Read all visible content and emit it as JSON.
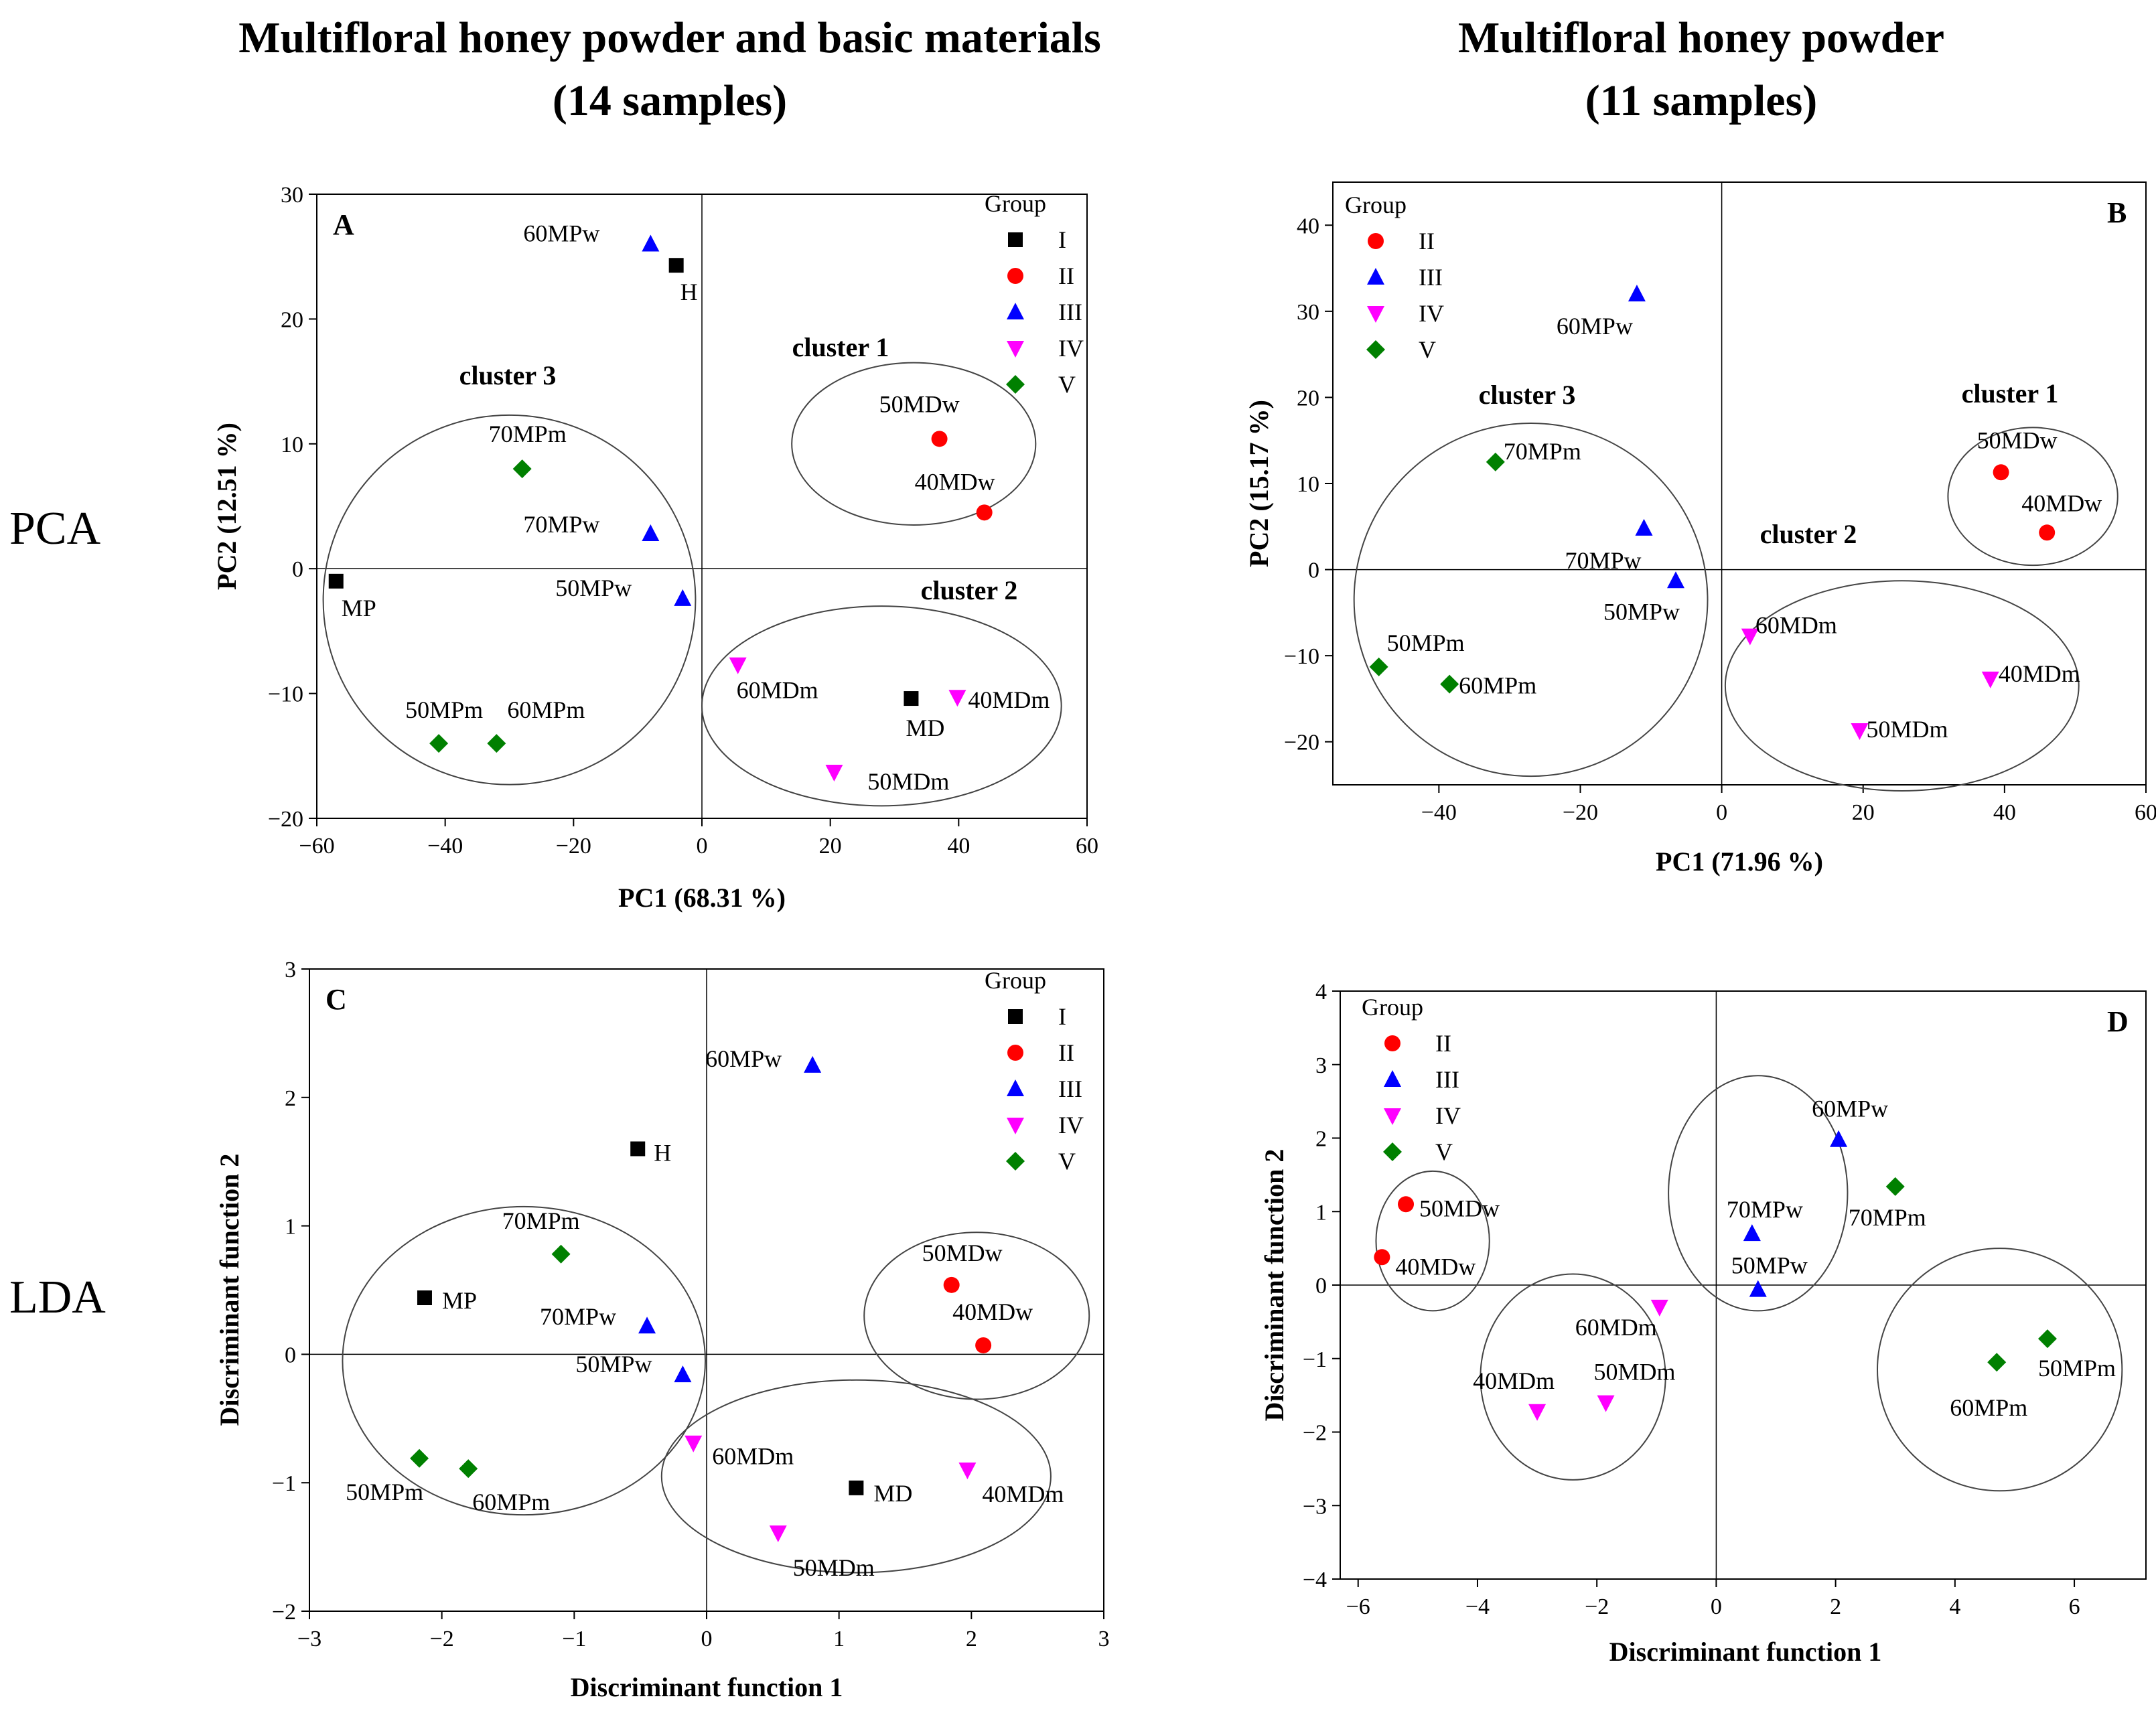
{
  "header": {
    "left_title_line1": "Multifloral honey powder and basic materials",
    "left_title_line2": "(14 samples)",
    "right_title_line1": "Multifloral honey powder",
    "right_title_line2": "(11 samples)",
    "row_label_pca": "PCA",
    "row_label_lda": "LDA"
  },
  "colors": {
    "I": "#000000",
    "II": "#ff0000",
    "III": "#0000ff",
    "IV": "#ff00ff",
    "V": "#008000"
  },
  "chart_data": [
    {
      "panel": "A",
      "type": "scatter",
      "xlabel": "PC1 (68.31 %)",
      "ylabel": "PC2 (12.51 %)",
      "xlim": [
        -60,
        60
      ],
      "ylim": [
        -20,
        30
      ],
      "xticks": [
        -60,
        -40,
        -20,
        0,
        20,
        40,
        60
      ],
      "yticks": [
        -20,
        -10,
        0,
        10,
        20,
        30
      ],
      "legend_title": "Group",
      "legend_position": "top-right",
      "legend": [
        {
          "label": "I",
          "group": "I"
        },
        {
          "label": "II",
          "group": "II"
        },
        {
          "label": "III",
          "group": "III"
        },
        {
          "label": "IV",
          "group": "IV"
        },
        {
          "label": "V",
          "group": "V"
        }
      ],
      "points": [
        {
          "label": "60MPw",
          "group": "III",
          "x": -8,
          "y": 26
        },
        {
          "label": "H",
          "group": "I",
          "x": -4,
          "y": 24.3
        },
        {
          "label": "70MPm",
          "group": "V",
          "x": -28,
          "y": 8
        },
        {
          "label": "70MPw",
          "group": "III",
          "x": -8,
          "y": 2.8
        },
        {
          "label": "MP",
          "group": "I",
          "x": -57,
          "y": -1
        },
        {
          "label": "50MPw",
          "group": "III",
          "x": -3,
          "y": -2.4
        },
        {
          "label": "50MPm",
          "group": "V",
          "x": -41,
          "y": -14
        },
        {
          "label": "60MPm",
          "group": "V",
          "x": -32,
          "y": -14
        },
        {
          "label": "50MDw",
          "group": "II",
          "x": 37,
          "y": 10.4
        },
        {
          "label": "40MDw",
          "group": "II",
          "x": 44,
          "y": 4.5
        },
        {
          "label": "60MDm",
          "group": "IV",
          "x": 5.6,
          "y": -7.7
        },
        {
          "label": "MD",
          "group": "I",
          "x": 32.6,
          "y": -10.4
        },
        {
          "label": "40MDm",
          "group": "IV",
          "x": 39.8,
          "y": -10.3
        },
        {
          "label": "50MDm",
          "group": "IV",
          "x": 20.6,
          "y": -16.3
        }
      ],
      "clusters": [
        {
          "label": "cluster 1",
          "cx": 33,
          "cy": 10,
          "rx": 19,
          "ry": 6.5
        },
        {
          "label": "cluster 2",
          "cx": 28,
          "cy": -11,
          "rx": 28,
          "ry": 8
        },
        {
          "label": "cluster 3",
          "cx": -30,
          "cy": -2.5,
          "rx": 29,
          "ry": 14.8
        }
      ]
    },
    {
      "panel": "B",
      "type": "scatter",
      "xlabel": "PC1 (71.96 %)",
      "ylabel": "PC2 (15.17 %)",
      "xlim": [
        -55,
        60
      ],
      "ylim": [
        -25,
        45
      ],
      "xticks": [
        -40,
        -20,
        0,
        20,
        40,
        60
      ],
      "yticks": [
        -20,
        -10,
        0,
        10,
        20,
        30,
        40
      ],
      "legend_title": "Group",
      "legend_position": "top-left",
      "legend": [
        {
          "label": "II",
          "group": "II"
        },
        {
          "label": "III",
          "group": "III"
        },
        {
          "label": "IV",
          "group": "IV"
        },
        {
          "label": "V",
          "group": "V"
        }
      ],
      "points": [
        {
          "label": "60MPw",
          "group": "III",
          "x": -12,
          "y": 32
        },
        {
          "label": "70MPm",
          "group": "V",
          "x": -32,
          "y": 12.5
        },
        {
          "label": "70MPw",
          "group": "III",
          "x": -11,
          "y": 4.8
        },
        {
          "label": "50MPw",
          "group": "III",
          "x": -6.5,
          "y": -1.3
        },
        {
          "label": "50MPm",
          "group": "V",
          "x": -48.5,
          "y": -11.3
        },
        {
          "label": "60MPm",
          "group": "V",
          "x": -38.5,
          "y": -13.3
        },
        {
          "label": "50MDw",
          "group": "II",
          "x": 39.5,
          "y": 11.3
        },
        {
          "label": "40MDw",
          "group": "II",
          "x": 46,
          "y": 4.3
        },
        {
          "label": "60MDm",
          "group": "IV",
          "x": 4,
          "y": -7.7
        },
        {
          "label": "40MDm",
          "group": "IV",
          "x": 38,
          "y": -12.7
        },
        {
          "label": "50MDm",
          "group": "IV",
          "x": 19.5,
          "y": -18.7
        }
      ],
      "clusters": [
        {
          "label": "cluster 1",
          "cx": 44,
          "cy": 8.5,
          "rx": 12,
          "ry": 8
        },
        {
          "label": "cluster 2",
          "cx": 25.5,
          "cy": -13.5,
          "rx": 25,
          "ry": 12.2
        },
        {
          "label": "cluster 3",
          "cx": -27,
          "cy": -3.5,
          "rx": 25,
          "ry": 20.5
        }
      ]
    },
    {
      "panel": "C",
      "type": "scatter",
      "xlabel": "Discriminant function 1",
      "ylabel": "Discriminant function 2",
      "xlim": [
        -3,
        3
      ],
      "ylim": [
        -2,
        3
      ],
      "xticks": [
        -3,
        -2,
        -1,
        0,
        1,
        2,
        3
      ],
      "yticks": [
        -2,
        -1,
        0,
        1,
        2,
        3
      ],
      "legend_title": "Group",
      "legend_position": "top-right",
      "legend": [
        {
          "label": "I",
          "group": "I"
        },
        {
          "label": "II",
          "group": "II"
        },
        {
          "label": "III",
          "group": "III"
        },
        {
          "label": "IV",
          "group": "IV"
        },
        {
          "label": "V",
          "group": "V"
        }
      ],
      "points": [
        {
          "label": "60MPw",
          "group": "III",
          "x": 0.8,
          "y": 2.25
        },
        {
          "label": "H",
          "group": "I",
          "x": -0.52,
          "y": 1.6
        },
        {
          "label": "70MPm",
          "group": "V",
          "x": -1.1,
          "y": 0.78
        },
        {
          "label": "MP",
          "group": "I",
          "x": -2.13,
          "y": 0.44
        },
        {
          "label": "70MPw",
          "group": "III",
          "x": -0.45,
          "y": 0.22
        },
        {
          "label": "50MPw",
          "group": "III",
          "x": -0.18,
          "y": -0.16
        },
        {
          "label": "50MPm",
          "group": "V",
          "x": -2.17,
          "y": -0.81
        },
        {
          "label": "60MPm",
          "group": "V",
          "x": -1.8,
          "y": -0.89
        },
        {
          "label": "50MDw",
          "group": "II",
          "x": 1.85,
          "y": 0.54
        },
        {
          "label": "40MDw",
          "group": "II",
          "x": 2.09,
          "y": 0.07
        },
        {
          "label": "60MDm",
          "group": "IV",
          "x": -0.1,
          "y": -0.69
        },
        {
          "label": "MD",
          "group": "I",
          "x": 1.13,
          "y": -1.04
        },
        {
          "label": "40MDm",
          "group": "IV",
          "x": 1.97,
          "y": -0.9
        },
        {
          "label": "50MDm",
          "group": "IV",
          "x": 0.54,
          "y": -1.39
        }
      ],
      "clusters": [
        {
          "label": "",
          "cx": 2.04,
          "cy": 0.3,
          "rx": 0.85,
          "ry": 0.65
        },
        {
          "label": "",
          "cx": 1.13,
          "cy": -0.95,
          "rx": 1.47,
          "ry": 0.75
        },
        {
          "label": "",
          "cx": -1.38,
          "cy": -0.05,
          "rx": 1.37,
          "ry": 1.2
        }
      ]
    },
    {
      "panel": "D",
      "type": "scatter",
      "xlabel": "Discriminant function 1",
      "ylabel": "Discriminant function 2",
      "xlim": [
        -6.3,
        7.2
      ],
      "ylim": [
        -4,
        4
      ],
      "xticks": [
        -6,
        -4,
        -2,
        0,
        2,
        4,
        6
      ],
      "yticks": [
        -4,
        -3,
        -2,
        -1,
        0,
        1,
        2,
        3,
        4
      ],
      "legend_title": "Group",
      "legend_position": "top-left",
      "legend": [
        {
          "label": "II",
          "group": "II"
        },
        {
          "label": "III",
          "group": "III"
        },
        {
          "label": "IV",
          "group": "IV"
        },
        {
          "label": "V",
          "group": "V"
        }
      ],
      "points": [
        {
          "label": "50MDw",
          "group": "II",
          "x": -5.2,
          "y": 1.1
        },
        {
          "label": "40MDw",
          "group": "II",
          "x": -5.6,
          "y": 0.38
        },
        {
          "label": "60MPw",
          "group": "III",
          "x": 2.05,
          "y": 1.98
        },
        {
          "label": "70MPm",
          "group": "V",
          "x": 3,
          "y": 1.34
        },
        {
          "label": "70MPw",
          "group": "III",
          "x": 0.6,
          "y": 0.7
        },
        {
          "label": "50MPw",
          "group": "III",
          "x": 0.7,
          "y": -0.06
        },
        {
          "label": "60MDm",
          "group": "IV",
          "x": -0.95,
          "y": -0.3
        },
        {
          "label": "40MDm",
          "group": "IV",
          "x": -3,
          "y": -1.72
        },
        {
          "label": "50MDm",
          "group": "IV",
          "x": -1.85,
          "y": -1.6
        },
        {
          "label": "50MPm",
          "group": "V",
          "x": 5.55,
          "y": -0.73
        },
        {
          "label": "60MPm",
          "group": "V",
          "x": 4.7,
          "y": -1.05
        }
      ],
      "clusters": [
        {
          "label": "",
          "cx": -4.75,
          "cy": 0.6,
          "rx": 0.95,
          "ry": 0.95
        },
        {
          "label": "",
          "cx": 0.7,
          "cy": 1.25,
          "rx": 1.5,
          "ry": 1.6
        },
        {
          "label": "",
          "cx": -2.4,
          "cy": -1.25,
          "rx": 1.55,
          "ry": 1.4
        },
        {
          "label": "",
          "cx": 4.75,
          "cy": -1.15,
          "rx": 2.05,
          "ry": 1.65
        }
      ]
    }
  ]
}
